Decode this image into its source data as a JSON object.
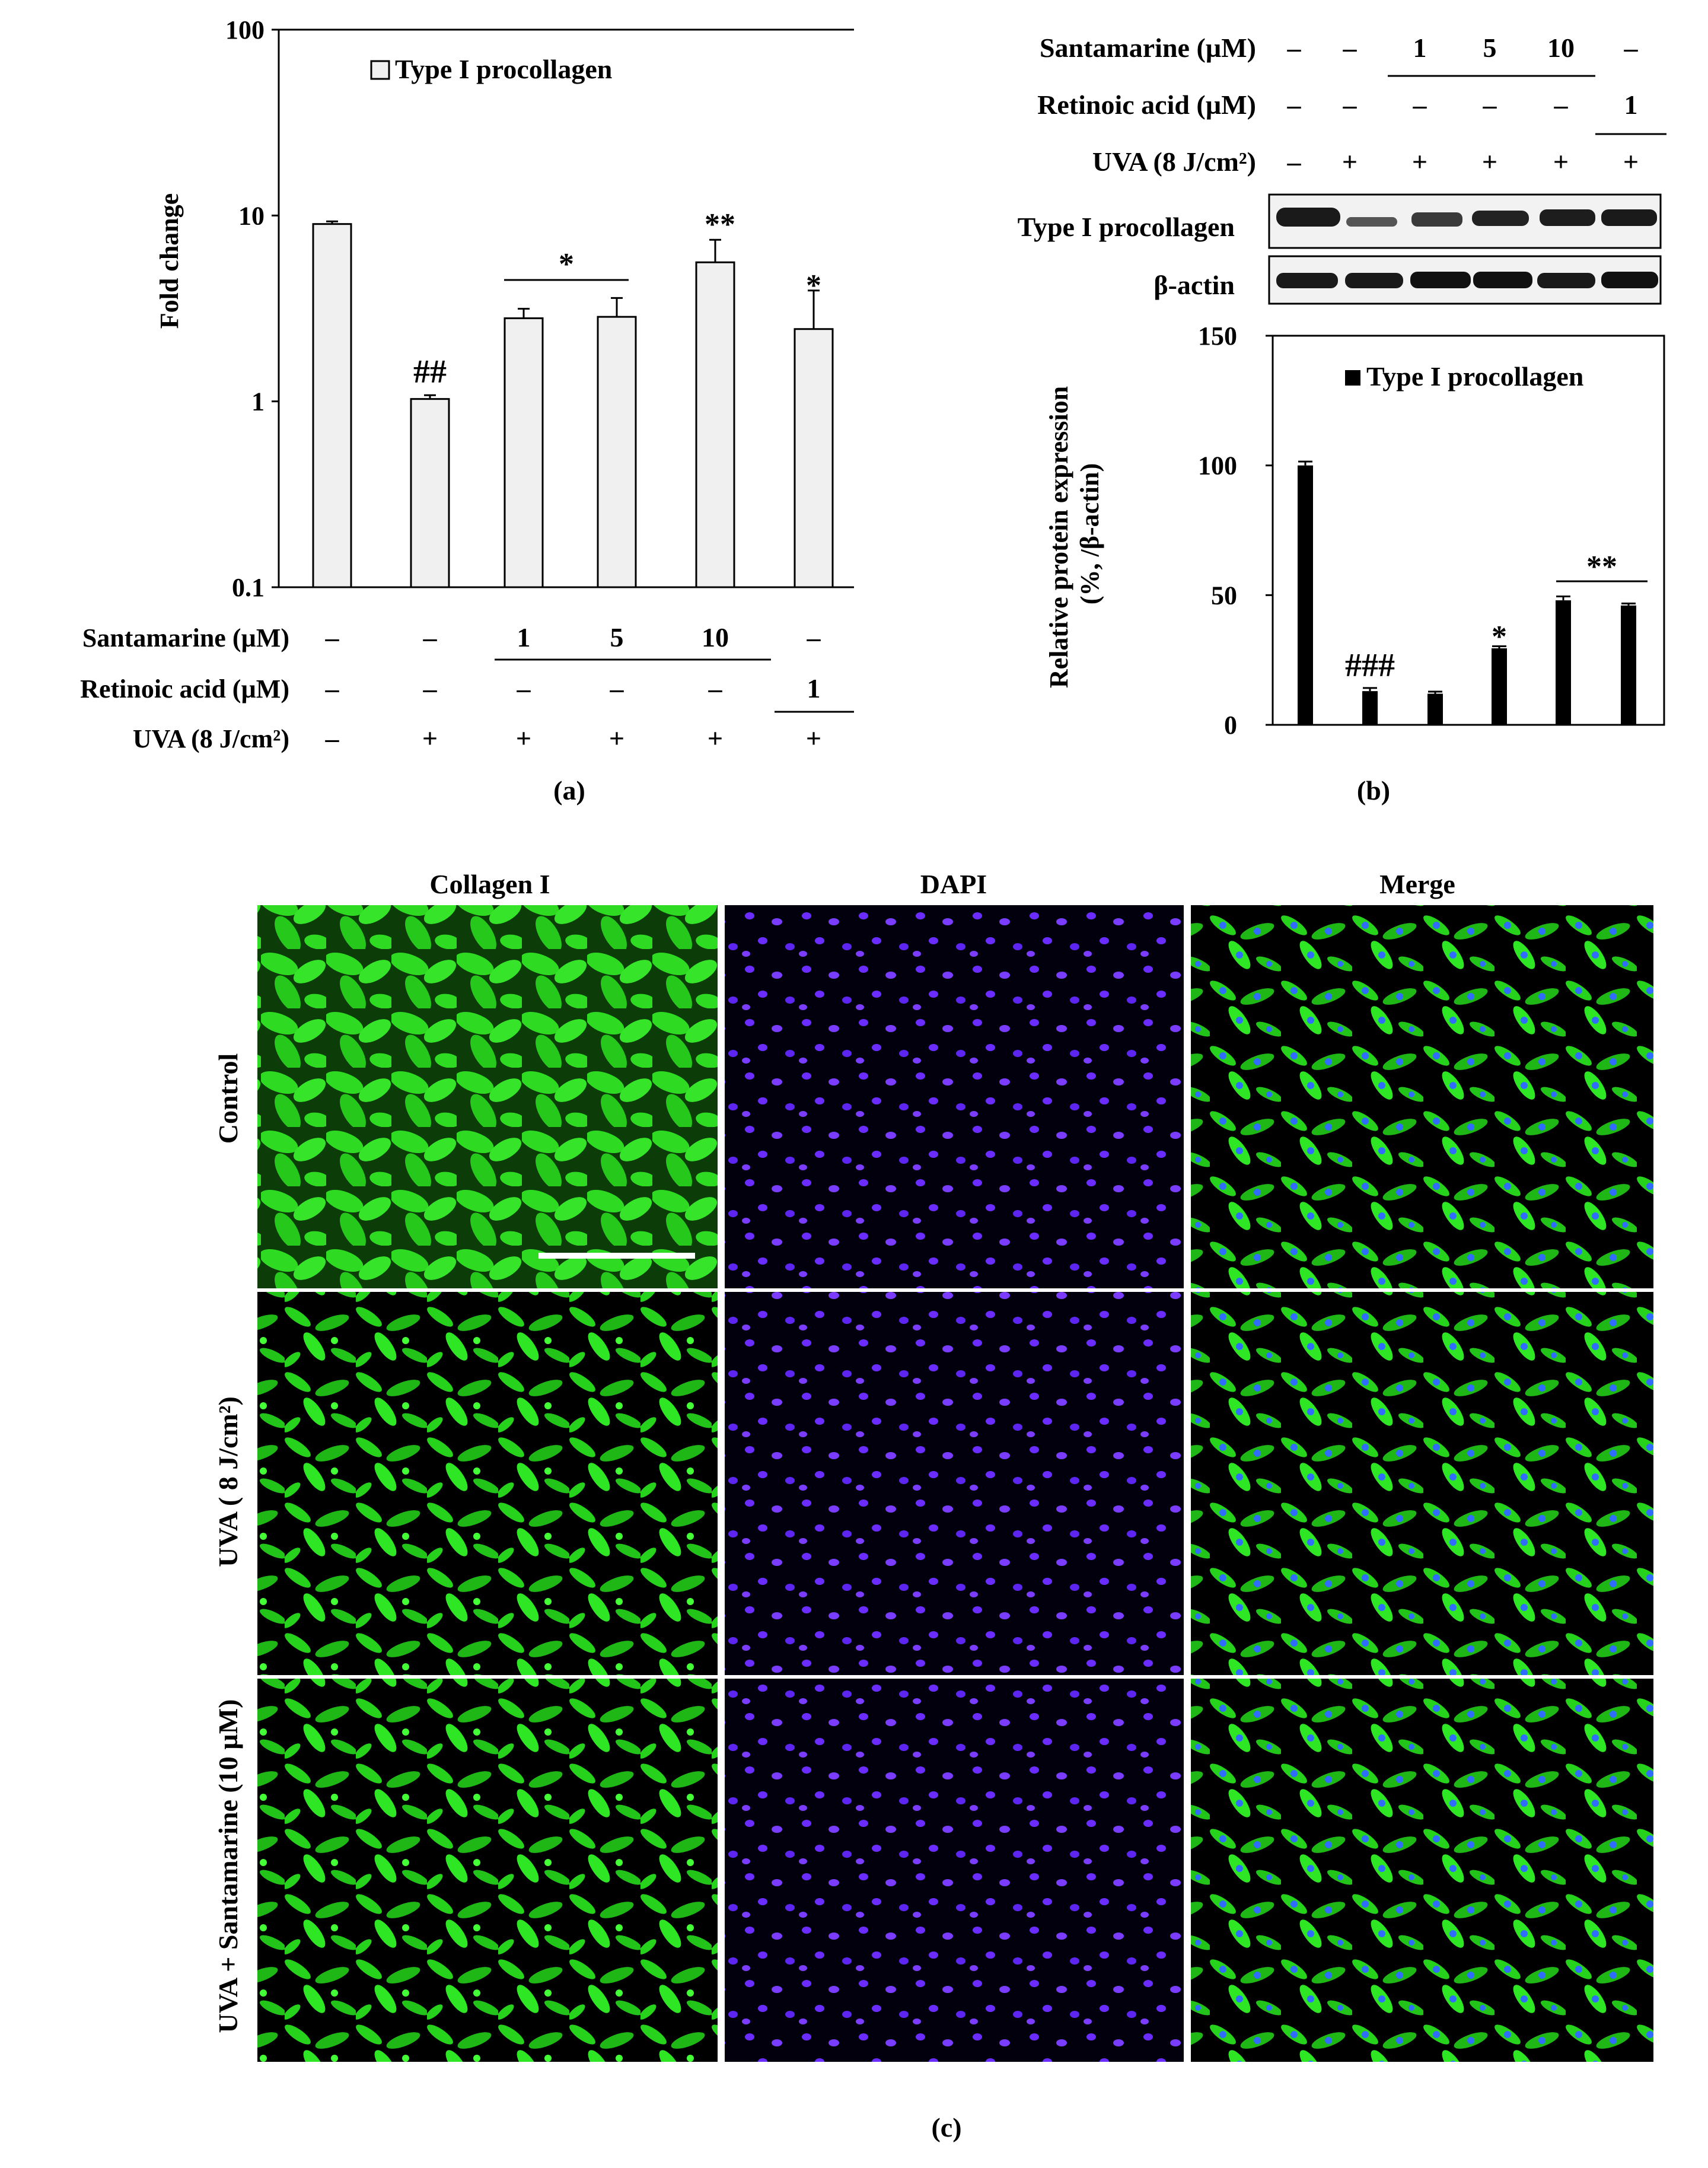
{
  "panel_a": {
    "label": "(a)",
    "treatment_table": {
      "rows": [
        {
          "label": "Santamarine (µM)",
          "values": [
            "–",
            "–",
            "1",
            "5",
            "10",
            "–"
          ]
        },
        {
          "label": "Retinoic acid (µM)",
          "values": [
            "–",
            "–",
            "–",
            "–",
            "–",
            "1"
          ]
        },
        {
          "label": "UVA (8 J/cm²)",
          "values": [
            "–",
            "+",
            "+",
            "+",
            "+",
            "+"
          ]
        }
      ]
    },
    "annotations": [
      {
        "text": "##",
        "bar": 1
      },
      {
        "text": "*",
        "bars": [
          2,
          3
        ]
      },
      {
        "text": "**",
        "bar": 4
      },
      {
        "text": "*",
        "bar": 5
      }
    ]
  },
  "panel_b": {
    "label": "(b)",
    "treatment_table": {
      "rows": [
        {
          "label": "Santamarine (µM)",
          "values": [
            "–",
            "–",
            "1",
            "5",
            "10",
            "–"
          ]
        },
        {
          "label": "Retinoic acid (µM)",
          "values": [
            "–",
            "–",
            "–",
            "–",
            "–",
            "1"
          ]
        },
        {
          "label": "UVA (8 J/cm²)",
          "values": [
            "–",
            "+",
            "+",
            "+",
            "+",
            "+"
          ]
        }
      ]
    },
    "blot_labels": [
      "Type I procollagen",
      "β-actin"
    ],
    "annotations": [
      {
        "text": "###",
        "bar": 1
      },
      {
        "text": "*",
        "bar": 3
      },
      {
        "text": "**",
        "bars": [
          4,
          5
        ]
      }
    ]
  },
  "panel_c": {
    "label": "(c)",
    "columns": [
      "Collagen I",
      "DAPI",
      "Merge"
    ],
    "rows": [
      "Control",
      "UVA ( 8 J/cm²)",
      "UVA + Santamarine (10 µM)"
    ],
    "colors": {
      "collagen": "#27d21d",
      "dapi": "#6a2cff",
      "background": "#000000"
    }
  },
  "chart_data": [
    {
      "type": "bar",
      "title": "",
      "xlabel": "",
      "ylabel": "Fold change",
      "yscale": "log",
      "ylim": [
        0.1,
        100
      ],
      "yticks": [
        "0.1",
        "1",
        "10",
        "100"
      ],
      "categories": [
        "1",
        "2",
        "3",
        "4",
        "5",
        "6"
      ],
      "series": [
        {
          "name": "Type I procollagen",
          "values": [
            9.0,
            1.03,
            2.8,
            2.85,
            5.6,
            2.45
          ],
          "errors": [
            0.3,
            0.05,
            0.35,
            0.75,
            1.8,
            1.5
          ],
          "color": "#f0f0f0"
        }
      ],
      "legend": "top-left",
      "grid": false
    },
    {
      "type": "bar",
      "title": "",
      "xlabel": "",
      "ylabel": "Relative protein expression (%, /β-actin)",
      "ylim": [
        0,
        150
      ],
      "yticks": [
        "0",
        "50",
        "100",
        "150"
      ],
      "categories": [
        "1",
        "2",
        "3",
        "4",
        "5",
        "6"
      ],
      "series": [
        {
          "name": "Type I procollagen",
          "values": [
            100,
            13,
            12,
            29.5,
            48,
            46
          ],
          "errors": [
            1.5,
            1.2,
            0.8,
            0.8,
            1.5,
            0.8
          ],
          "color": "#000000"
        }
      ],
      "legend": "top-right",
      "grid": false
    }
  ]
}
